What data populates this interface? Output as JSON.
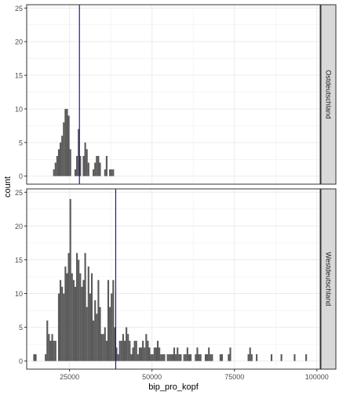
{
  "chart_data": {
    "type": "bar",
    "facets": [
      {
        "label": "Ostdeutschland",
        "vline": 28000,
        "bins": [
          [
            20000,
            1
          ],
          [
            20500,
            2
          ],
          [
            21000,
            3
          ],
          [
            21500,
            4
          ],
          [
            22000,
            5
          ],
          [
            22500,
            6
          ],
          [
            23000,
            8
          ],
          [
            23500,
            10
          ],
          [
            24000,
            10
          ],
          [
            24500,
            9
          ],
          [
            25000,
            4
          ],
          [
            26500,
            1
          ],
          [
            27000,
            3
          ],
          [
            27500,
            7
          ],
          [
            28000,
            3
          ],
          [
            29000,
            3
          ],
          [
            29500,
            5
          ],
          [
            30000,
            4
          ],
          [
            30500,
            2
          ],
          [
            32000,
            1
          ],
          [
            32500,
            2
          ],
          [
            33000,
            3
          ],
          [
            33500,
            3
          ],
          [
            34000,
            2
          ],
          [
            35500,
            1
          ],
          [
            36000,
            3
          ],
          [
            37000,
            1
          ],
          [
            37500,
            1
          ],
          [
            38000,
            1
          ]
        ]
      },
      {
        "label": "Westdeutschland",
        "vline": 39000,
        "bins": [
          [
            14000,
            1
          ],
          [
            14500,
            1
          ],
          [
            17500,
            1
          ],
          [
            18000,
            6
          ],
          [
            18500,
            4
          ],
          [
            19000,
            3
          ],
          [
            19500,
            4
          ],
          [
            20000,
            3
          ],
          [
            20500,
            3
          ],
          [
            21500,
            10
          ],
          [
            22000,
            12
          ],
          [
            22500,
            11
          ],
          [
            23000,
            10
          ],
          [
            23500,
            14
          ],
          [
            24000,
            13
          ],
          [
            24500,
            16
          ],
          [
            25000,
            24
          ],
          [
            25500,
            13
          ],
          [
            26000,
            12
          ],
          [
            26500,
            11
          ],
          [
            27000,
            16
          ],
          [
            27500,
            15
          ],
          [
            28000,
            13
          ],
          [
            28500,
            11
          ],
          [
            29000,
            12
          ],
          [
            29500,
            16
          ],
          [
            30000,
            8
          ],
          [
            30500,
            14
          ],
          [
            31000,
            10
          ],
          [
            31500,
            13
          ],
          [
            32000,
            6
          ],
          [
            32500,
            9
          ],
          [
            33000,
            7
          ],
          [
            33500,
            12
          ],
          [
            34000,
            8
          ],
          [
            34500,
            4
          ],
          [
            35000,
            4
          ],
          [
            35500,
            5
          ],
          [
            36000,
            3
          ],
          [
            36500,
            12
          ],
          [
            37000,
            8
          ],
          [
            37500,
            10
          ],
          [
            38000,
            12
          ],
          [
            38500,
            5
          ],
          [
            39000,
            2
          ],
          [
            39500,
            1
          ],
          [
            40000,
            3
          ],
          [
            40500,
            3
          ],
          [
            41000,
            4
          ],
          [
            41500,
            3
          ],
          [
            42000,
            5
          ],
          [
            42500,
            4
          ],
          [
            43000,
            3
          ],
          [
            43500,
            1
          ],
          [
            44000,
            2
          ],
          [
            44500,
            3
          ],
          [
            45000,
            3
          ],
          [
            45500,
            1
          ],
          [
            46000,
            2
          ],
          [
            46500,
            2
          ],
          [
            47000,
            3
          ],
          [
            47500,
            2
          ],
          [
            48000,
            4
          ],
          [
            48500,
            3
          ],
          [
            49000,
            2
          ],
          [
            49500,
            1
          ],
          [
            50000,
            1
          ],
          [
            50500,
            2
          ],
          [
            51000,
            2
          ],
          [
            51500,
            3
          ],
          [
            52000,
            2
          ],
          [
            52500,
            1
          ],
          [
            53000,
            1
          ],
          [
            53500,
            1
          ],
          [
            54500,
            1
          ],
          [
            55000,
            1
          ],
          [
            55500,
            1
          ],
          [
            56000,
            1
          ],
          [
            56500,
            2
          ],
          [
            57000,
            1
          ],
          [
            57500,
            2
          ],
          [
            58000,
            1
          ],
          [
            58500,
            1
          ],
          [
            59500,
            1
          ],
          [
            60000,
            1
          ],
          [
            60500,
            2
          ],
          [
            61000,
            1
          ],
          [
            61500,
            1
          ],
          [
            63000,
            1
          ],
          [
            63500,
            2
          ],
          [
            64000,
            1
          ],
          [
            64500,
            1
          ],
          [
            66000,
            1
          ],
          [
            66500,
            1
          ],
          [
            67000,
            2
          ],
          [
            67500,
            1
          ],
          [
            68000,
            1
          ],
          [
            70500,
            1
          ],
          [
            71000,
            1
          ],
          [
            73000,
            1
          ],
          [
            73500,
            2
          ],
          [
            79000,
            1
          ],
          [
            79500,
            2
          ],
          [
            80000,
            1
          ],
          [
            81500,
            1
          ],
          [
            86000,
            1
          ],
          [
            89000,
            1
          ],
          [
            93000,
            1
          ],
          [
            96500,
            1
          ]
        ]
      }
    ],
    "binwidth": 500,
    "xlim": [
      12000,
      101000
    ],
    "ylim": [
      -1.2,
      25.5
    ],
    "x_ticks": [
      25000,
      50000,
      75000,
      100000
    ],
    "x_tick_labels": [
      "25000",
      "50000",
      "75000",
      "100000"
    ],
    "y_ticks": [
      0,
      5,
      10,
      15,
      20,
      25
    ],
    "y_tick_labels": [
      "0",
      "5",
      "10",
      "15",
      "20",
      "25"
    ],
    "xlabel": "bip_pro_kopf",
    "ylabel": "count",
    "grid": true,
    "colors": {
      "bar": "#595959",
      "vline": "#1a1a9e",
      "panel_bg": "#ffffff",
      "grid": "#ebebeb",
      "strip_bg": "#d9d9d9",
      "border": "#333333",
      "text": "#4d4d4d"
    }
  }
}
